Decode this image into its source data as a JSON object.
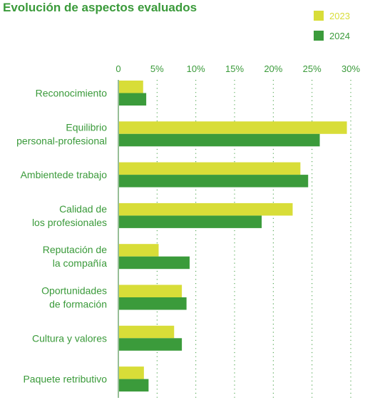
{
  "chart_data": {
    "type": "bar",
    "orientation": "horizontal",
    "title": "Evolución de aspectos evaluados",
    "categories": [
      [
        "Reconocimiento"
      ],
      [
        "Equilibrio",
        "personal-profesional"
      ],
      [
        "Ambientede trabajo"
      ],
      [
        "Calidad de",
        "los profesionales"
      ],
      [
        "Reputación de",
        "la compañía"
      ],
      [
        "Oportunidades",
        "de formación"
      ],
      [
        "Cultura y valores"
      ],
      [
        "Paquete retributivo"
      ]
    ],
    "series": [
      {
        "name": "2023",
        "color": "#d8dd38",
        "values": [
          3.2,
          29.5,
          23.5,
          22.5,
          5.2,
          8.2,
          7.2,
          3.3
        ]
      },
      {
        "name": "2024",
        "color": "#3b9b3b",
        "values": [
          3.6,
          26.0,
          24.5,
          18.5,
          9.2,
          8.8,
          8.2,
          3.9
        ]
      }
    ],
    "x_ticks": [
      "0",
      "5%",
      "10%",
      "15%",
      "20%",
      "25%",
      "30%"
    ],
    "xlim": [
      0,
      30
    ],
    "x_tick_values": [
      0,
      5,
      10,
      15,
      20,
      25,
      30
    ],
    "grid": "vertical dotted",
    "legend_position": "top-right",
    "label_color": "#3a9a3a"
  }
}
